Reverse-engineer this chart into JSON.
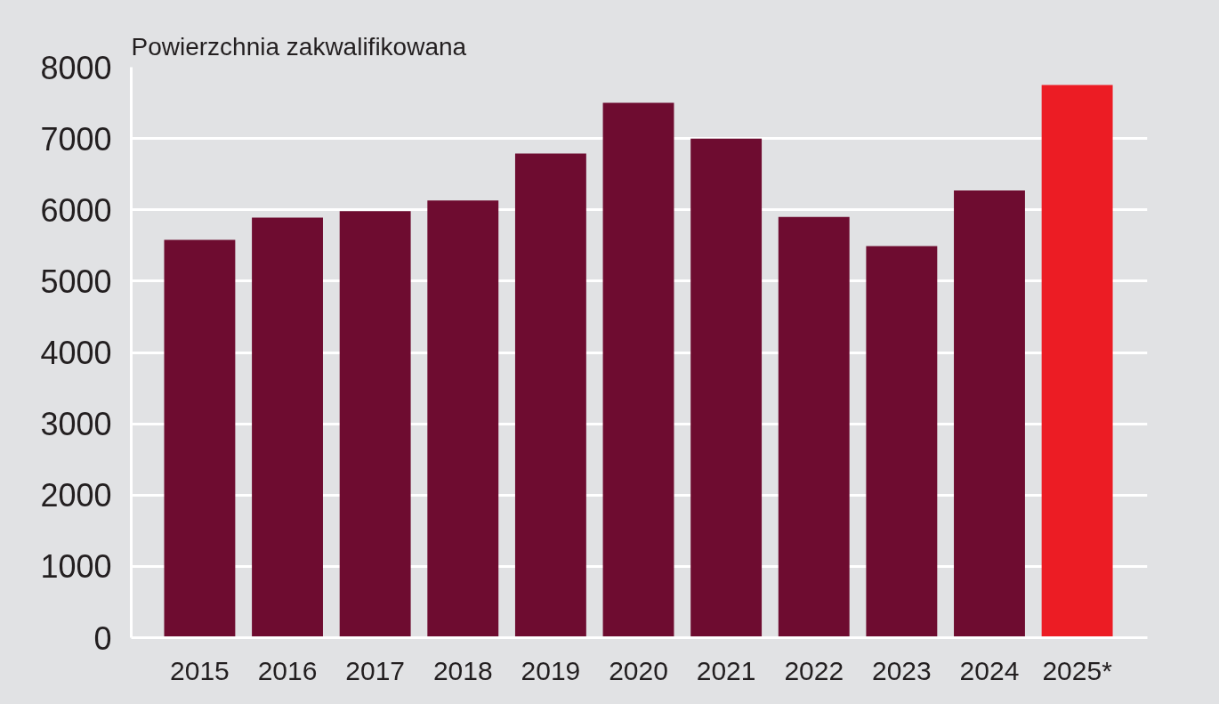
{
  "chart_data": {
    "type": "bar",
    "ylabel": "Powierzchnia zakwalifikowana",
    "categories": [
      "2015",
      "2016",
      "2017",
      "2018",
      "2019",
      "2020",
      "2021",
      "2022",
      "2023",
      "2024",
      "2025*"
    ],
    "values": [
      5580,
      5890,
      5980,
      6130,
      6790,
      7500,
      7000,
      5900,
      5490,
      6270,
      7750
    ],
    "colors": [
      "#6e0c30",
      "#6e0c30",
      "#6e0c30",
      "#6e0c30",
      "#6e0c30",
      "#6e0c30",
      "#6e0c30",
      "#6e0c30",
      "#6e0c30",
      "#6e0c30",
      "#ec1c24"
    ],
    "ylim": [
      0,
      8000
    ],
    "yticks": [
      0,
      1000,
      2000,
      3000,
      4000,
      5000,
      6000,
      7000,
      8000
    ],
    "grid": "y"
  }
}
